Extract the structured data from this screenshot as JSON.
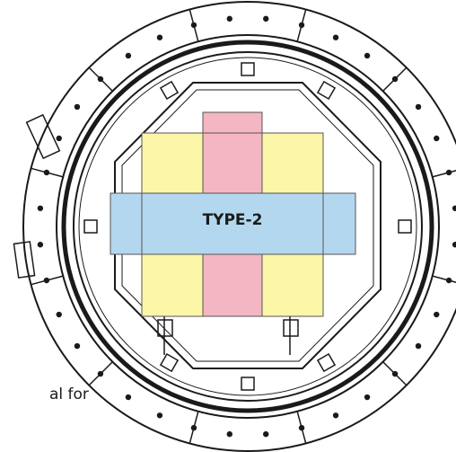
{
  "diagram": {
    "label": "TYPE-2",
    "caption": "al for"
  }
}
